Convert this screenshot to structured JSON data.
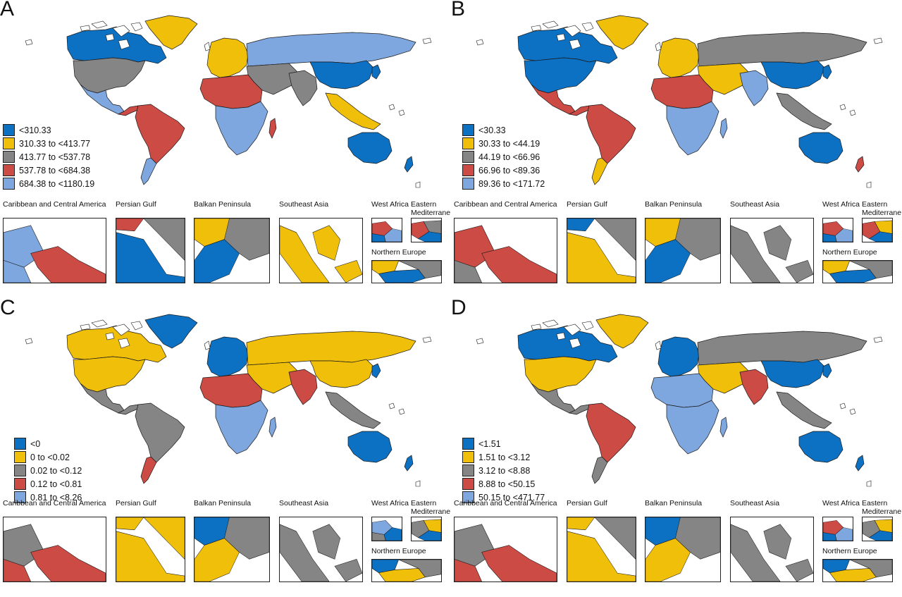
{
  "colors": {
    "c1": "#0c71c3",
    "c2": "#f0bf0a",
    "c3": "#858585",
    "c4": "#cc4b45",
    "c5": "#7fa7df",
    "border": "#1a1a1a"
  },
  "inset_titles": {
    "caribbean": "Caribbean and Central America",
    "persian_gulf": "Persian Gulf",
    "balkan": "Balkan Peninsula",
    "southeast_asia": "Southeast Asia",
    "west_africa": "West Africa",
    "eastern_med": "Eastern Mediterrane",
    "northern_europe": "Northern Europe"
  },
  "panels": [
    {
      "label": "A",
      "legend": [
        "<310.33",
        "310.33 to <413.77",
        "413.77 to <537.78",
        "537.78 to <684.38",
        "684.38 to <1180.19"
      ],
      "regions": {
        "na": "c1",
        "usa": "c3",
        "mex": "c5",
        "ca": "c4",
        "sa": "c4",
        "sa_s": "c5",
        "green": "c2",
        "eur": "c2",
        "rus": "c5",
        "me": "c3",
        "naf": "c4",
        "saf": "c5",
        "india": "c3",
        "china": "c1",
        "sea": "c2",
        "aus": "c1",
        "japan": "c1",
        "madag": "c4",
        "nz": "c1"
      },
      "insets": {
        "caribbean": [
          "c5",
          "c4",
          "c5"
        ],
        "persian_gulf": [
          "c1",
          "c3",
          "c4"
        ],
        "balkan": [
          "c2",
          "c1",
          "c3"
        ],
        "southeast_asia": [
          "c2",
          "c2",
          "c2"
        ],
        "west_africa": [
          "c4",
          "c5",
          "c1"
        ],
        "eastern_med": [
          "c4",
          "c3",
          "c1"
        ],
        "northern_europe": [
          "c2",
          "c1",
          "c3"
        ]
      }
    },
    {
      "label": "B",
      "legend": [
        "<30.33",
        "30.33 to <44.19",
        "44.19 to <66.96",
        "66.96 to <89.36",
        "89.36 to <171.72"
      ],
      "regions": {
        "na": "c1",
        "usa": "c1",
        "mex": "c4",
        "ca": "c4",
        "sa": "c4",
        "sa_s": "c2",
        "green": "c2",
        "eur": "c2",
        "rus": "c3",
        "me": "c2",
        "naf": "c4",
        "saf": "c5",
        "india": "c5",
        "china": "c1",
        "sea": "c3",
        "aus": "c1",
        "japan": "c1",
        "madag": "c5",
        "nz": "c4"
      },
      "insets": {
        "caribbean": [
          "c4",
          "c4",
          "c3"
        ],
        "persian_gulf": [
          "c2",
          "c3",
          "c1"
        ],
        "balkan": [
          "c2",
          "c1",
          "c3"
        ],
        "southeast_asia": [
          "c3",
          "c3",
          "c3"
        ],
        "west_africa": [
          "c4",
          "c5",
          "c1"
        ],
        "eastern_med": [
          "c4",
          "c2",
          "c1"
        ],
        "northern_europe": [
          "c2",
          "c1",
          "c3"
        ]
      }
    },
    {
      "label": "C",
      "legend": [
        "<0",
        "0 to <0.02",
        "0.02 to <0.12",
        "0.12 to <0.81",
        "0.81 to <8.26"
      ],
      "regions": {
        "na": "c2",
        "usa": "c2",
        "mex": "c3",
        "ca": "c3",
        "sa": "c3",
        "sa_s": "c4",
        "green": "c1",
        "eur": "c1",
        "rus": "c2",
        "me": "c2",
        "naf": "c4",
        "saf": "c5",
        "india": "c4",
        "china": "c2",
        "sea": "c3",
        "aus": "c1",
        "japan": "c1",
        "madag": "c5",
        "nz": "c1"
      },
      "insets": {
        "caribbean": [
          "c3",
          "c4",
          "c4"
        ],
        "persian_gulf": [
          "c2",
          "c2",
          "c2"
        ],
        "balkan": [
          "c1",
          "c2",
          "c3"
        ],
        "southeast_asia": [
          "c3",
          "c3",
          "c3"
        ],
        "west_africa": [
          "c5",
          "c1",
          "c3"
        ],
        "eastern_med": [
          "c3",
          "c2",
          "c1"
        ],
        "northern_europe": [
          "c1",
          "c2",
          "c3"
        ]
      }
    },
    {
      "label": "D",
      "legend": [
        "<1.51",
        "1.51 to <3.12",
        "3.12 to <8.88",
        "8.88 to <50.15",
        "50.15 to <471.77"
      ],
      "regions": {
        "na": "c1",
        "usa": "c2",
        "mex": "c3",
        "ca": "c3",
        "sa": "c4",
        "sa_s": "c3",
        "green": "c2",
        "eur": "c1",
        "rus": "c3",
        "me": "c2",
        "naf": "c5",
        "saf": "c5",
        "india": "c4",
        "china": "c1",
        "sea": "c3",
        "aus": "c1",
        "japan": "c1",
        "madag": "c5",
        "nz": "c1"
      },
      "insets": {
        "caribbean": [
          "c3",
          "c4",
          "c4"
        ],
        "persian_gulf": [
          "c2",
          "c3",
          "c2"
        ],
        "balkan": [
          "c1",
          "c2",
          "c3"
        ],
        "southeast_asia": [
          "c3",
          "c3",
          "c3"
        ],
        "west_africa": [
          "c4",
          "c5",
          "c1"
        ],
        "eastern_med": [
          "c3",
          "c2",
          "c1"
        ],
        "northern_europe": [
          "c1",
          "c2",
          "c3"
        ]
      }
    }
  ]
}
